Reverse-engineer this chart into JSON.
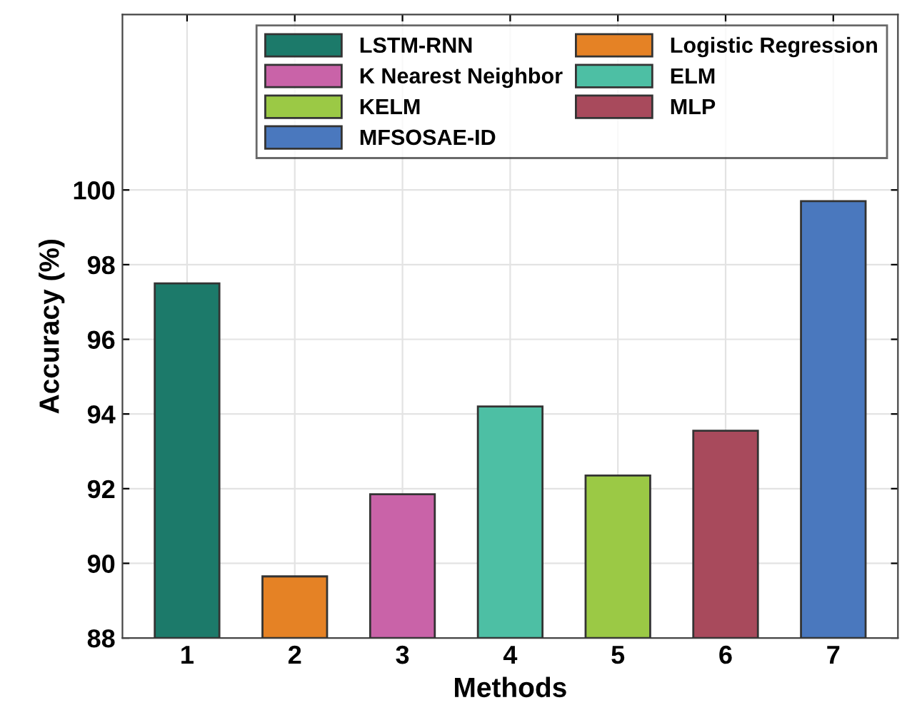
{
  "chart_data": {
    "type": "bar",
    "xlabel": "Methods",
    "ylabel": "Accuracy (%)",
    "categories": [
      "1",
      "2",
      "3",
      "4",
      "5",
      "6",
      "7"
    ],
    "series": [
      {
        "name": "LSTM-RNN",
        "color": "#1c7a6a",
        "values": [
          97.5,
          null,
          null,
          null,
          null,
          null,
          null
        ]
      },
      {
        "name": "Logistic Regression",
        "color": "#e58225",
        "values": [
          null,
          89.65,
          null,
          null,
          null,
          null,
          null
        ]
      },
      {
        "name": "K Nearest Neighbor",
        "color": "#c963a8",
        "values": [
          null,
          null,
          91.85,
          null,
          null,
          null,
          null
        ]
      },
      {
        "name": "ELM",
        "color": "#4dbfa4",
        "values": [
          null,
          null,
          null,
          94.2,
          null,
          null,
          null
        ]
      },
      {
        "name": "KELM",
        "color": "#9bc945",
        "values": [
          null,
          null,
          null,
          null,
          92.35,
          null,
          null
        ]
      },
      {
        "name": "MLP",
        "color": "#a84a5c",
        "values": [
          null,
          null,
          null,
          null,
          null,
          93.55,
          null
        ]
      },
      {
        "name": "MFSOSAE-ID",
        "color": "#4a78be",
        "values": [
          null,
          null,
          null,
          null,
          null,
          null,
          99.7
        ]
      }
    ],
    "ylim": [
      88,
      104.7
    ],
    "yticks": [
      88,
      90,
      92,
      94,
      96,
      98,
      100
    ],
    "grid": true,
    "legend": "top right"
  }
}
